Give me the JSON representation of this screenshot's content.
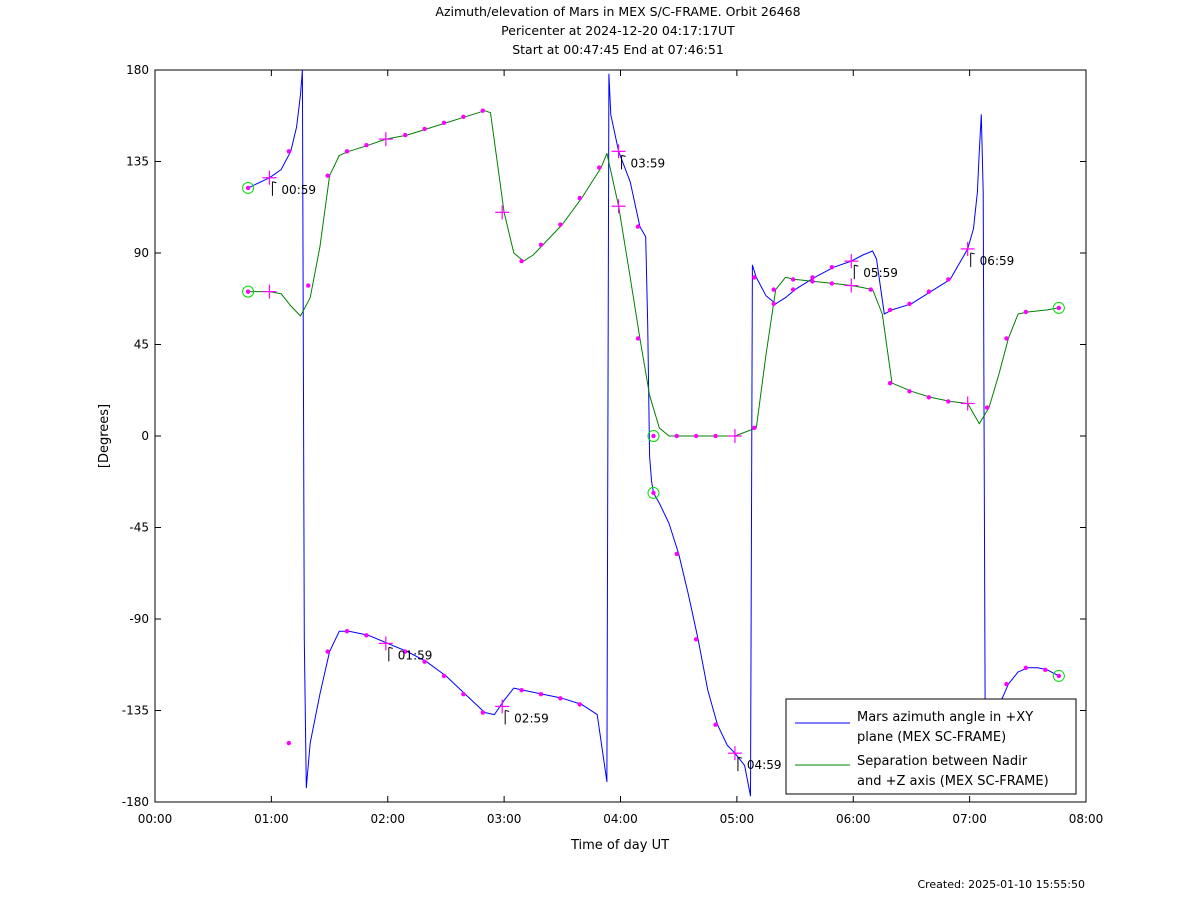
{
  "chart_data": {
    "type": "line",
    "title_lines": [
      "Azimuth/elevation of Mars in MEX S/C-FRAME.  Orbit 26468",
      "Pericenter at 2024-12-20 04:17:17UT",
      "Start at 00:47:45 End at 07:46:51"
    ],
    "xlabel": "Time of day UT",
    "ylabel": "[Degrees]",
    "xlim": [
      "00:00",
      "08:00"
    ],
    "ylim": [
      -180,
      180
    ],
    "x_ticks": [
      "00:00",
      "01:00",
      "02:00",
      "03:00",
      "04:00",
      "05:00",
      "06:00",
      "07:00",
      "08:00"
    ],
    "y_ticks": [
      180,
      135,
      90,
      45,
      0,
      -45,
      -90,
      -135,
      -180
    ],
    "grid": false,
    "legend_position": "bottom-right",
    "legend": [
      {
        "lines": [
          "Mars azimuth angle in +XY",
          "plane (MEX SC-FRAME)"
        ],
        "color": "#0000ff"
      },
      {
        "lines": [
          "Separation between Nadir",
          "and +Z axis (MEX SC-FRAME)"
        ],
        "color": "#008000"
      }
    ],
    "series": [
      {
        "id": "azimuth",
        "color": "#0000ff",
        "points": [
          [
            "00:48",
            122
          ],
          [
            "00:59",
            127
          ],
          [
            "01:05",
            131
          ],
          [
            "01:10",
            140
          ],
          [
            "01:13",
            152
          ],
          [
            "01:15",
            168
          ],
          [
            "01:16",
            180
          ],
          [
            "01:17",
            -100
          ],
          [
            "01:18",
            -173
          ],
          [
            "01:20",
            -151
          ],
          [
            "01:25",
            -127
          ],
          [
            "01:30",
            -106
          ],
          [
            "01:35",
            -96
          ],
          [
            "01:40",
            -96
          ],
          [
            "01:50",
            -98
          ],
          [
            "02:00",
            -102
          ],
          [
            "02:10",
            -106
          ],
          [
            "02:20",
            -111
          ],
          [
            "02:30",
            -118
          ],
          [
            "02:40",
            -127
          ],
          [
            "02:50",
            -136
          ],
          [
            "02:55",
            -137
          ],
          [
            "03:00",
            -130
          ],
          [
            "03:05",
            -124
          ],
          [
            "03:10",
            -125
          ],
          [
            "03:20",
            -127
          ],
          [
            "03:30",
            -129
          ],
          [
            "03:40",
            -132
          ],
          [
            "03:48",
            -137
          ],
          [
            "03:53",
            -170
          ],
          [
            "03:54",
            178
          ],
          [
            "03:55",
            158
          ],
          [
            "03:59",
            140
          ],
          [
            "04:05",
            125
          ],
          [
            "04:10",
            103
          ],
          [
            "04:13",
            98
          ],
          [
            "04:14",
            55
          ],
          [
            "04:15",
            -10
          ],
          [
            "04:16",
            -22
          ],
          [
            "04:17",
            -28
          ],
          [
            "04:20",
            -33
          ],
          [
            "04:25",
            -43
          ],
          [
            "04:30",
            -58
          ],
          [
            "04:35",
            -78
          ],
          [
            "04:40",
            -100
          ],
          [
            "04:45",
            -125
          ],
          [
            "04:50",
            -142
          ],
          [
            "04:55",
            -152
          ],
          [
            "04:59",
            -156
          ],
          [
            "05:04",
            -162
          ],
          [
            "05:07",
            -177
          ],
          [
            "05:08",
            84
          ],
          [
            "05:10",
            78
          ],
          [
            "05:15",
            69
          ],
          [
            "05:20",
            65
          ],
          [
            "05:25",
            68
          ],
          [
            "05:30",
            72
          ],
          [
            "05:40",
            78
          ],
          [
            "05:50",
            83
          ],
          [
            "05:59",
            86
          ],
          [
            "06:05",
            89
          ],
          [
            "06:10",
            91
          ],
          [
            "06:12",
            87
          ],
          [
            "06:16",
            60
          ],
          [
            "06:20",
            62
          ],
          [
            "06:30",
            65
          ],
          [
            "06:40",
            71
          ],
          [
            "06:50",
            77
          ],
          [
            "06:59",
            92
          ],
          [
            "07:02",
            102
          ],
          [
            "07:04",
            120
          ],
          [
            "07:05",
            140
          ],
          [
            "07:06",
            158
          ],
          [
            "07:07",
            120
          ],
          [
            "07:08",
            -130
          ],
          [
            "07:10",
            -138
          ],
          [
            "07:15",
            -133
          ],
          [
            "07:20",
            -122
          ],
          [
            "07:25",
            -116
          ],
          [
            "07:30",
            -114
          ],
          [
            "07:35",
            -114
          ],
          [
            "07:40",
            -115
          ],
          [
            "07:46",
            -118
          ]
        ]
      },
      {
        "id": "separation",
        "color": "#008000",
        "points": [
          [
            "00:48",
            71
          ],
          [
            "00:59",
            71
          ],
          [
            "01:05",
            70
          ],
          [
            "01:10",
            64
          ],
          [
            "01:15",
            59
          ],
          [
            "01:20",
            68
          ],
          [
            "01:25",
            93
          ],
          [
            "01:30",
            128
          ],
          [
            "01:35",
            138
          ],
          [
            "01:40",
            140
          ],
          [
            "01:50",
            143
          ],
          [
            "01:59",
            146
          ],
          [
            "02:10",
            148
          ],
          [
            "02:20",
            151
          ],
          [
            "02:30",
            154
          ],
          [
            "02:40",
            157
          ],
          [
            "02:50",
            160
          ],
          [
            "02:53",
            159
          ],
          [
            "03:00",
            110
          ],
          [
            "03:05",
            90
          ],
          [
            "03:10",
            86
          ],
          [
            "03:15",
            89
          ],
          [
            "03:20",
            94
          ],
          [
            "03:30",
            104
          ],
          [
            "03:40",
            117
          ],
          [
            "03:50",
            132
          ],
          [
            "03:53",
            139
          ],
          [
            "03:59",
            113
          ],
          [
            "04:05",
            78
          ],
          [
            "04:10",
            48
          ],
          [
            "04:15",
            20
          ],
          [
            "04:20",
            4
          ],
          [
            "04:25",
            0
          ],
          [
            "04:30",
            0
          ],
          [
            "04:40",
            0
          ],
          [
            "04:50",
            0
          ],
          [
            "04:59",
            0
          ],
          [
            "05:10",
            4
          ],
          [
            "05:15",
            40
          ],
          [
            "05:20",
            72
          ],
          [
            "05:25",
            78
          ],
          [
            "05:30",
            77
          ],
          [
            "05:40",
            76
          ],
          [
            "05:50",
            75
          ],
          [
            "05:59",
            74
          ],
          [
            "06:05",
            73
          ],
          [
            "06:10",
            72
          ],
          [
            "06:15",
            60
          ],
          [
            "06:20",
            26
          ],
          [
            "06:25",
            24
          ],
          [
            "06:30",
            22
          ],
          [
            "06:40",
            19
          ],
          [
            "06:50",
            17
          ],
          [
            "06:59",
            16
          ],
          [
            "07:05",
            6
          ],
          [
            "07:10",
            14
          ],
          [
            "07:15",
            30
          ],
          [
            "07:20",
            48
          ],
          [
            "07:25",
            60
          ],
          [
            "07:30",
            61
          ],
          [
            "07:40",
            62
          ],
          [
            "07:46",
            63
          ]
        ]
      }
    ],
    "annotations": [
      {
        "text": "00:59",
        "x": "00:59",
        "y": 127
      },
      {
        "text": "01:59",
        "x": "01:59",
        "y": -102
      },
      {
        "text": "02:59",
        "x": "02:59",
        "y": -133
      },
      {
        "text": "03:59",
        "x": "03:59",
        "y": 140
      },
      {
        "text": "04:59",
        "x": "04:59",
        "y": -156
      },
      {
        "text": "05:59",
        "x": "05:59",
        "y": 86
      },
      {
        "text": "06:59",
        "x": "06:59",
        "y": 92
      }
    ],
    "start_end_markers": [
      {
        "x": "00:48",
        "y": 122
      },
      {
        "x": "00:48",
        "y": 71
      },
      {
        "x": "04:17",
        "y": -28
      },
      {
        "x": "04:17",
        "y": 0
      },
      {
        "x": "07:46",
        "y": -118
      },
      {
        "x": "07:46",
        "y": 63
      }
    ],
    "hour_crosses": [
      {
        "x": "00:59",
        "y": 127
      },
      {
        "x": "00:59",
        "y": 71
      },
      {
        "x": "01:59",
        "y": -102
      },
      {
        "x": "01:59",
        "y": 146
      },
      {
        "x": "02:59",
        "y": -133
      },
      {
        "x": "02:59",
        "y": 110
      },
      {
        "x": "03:59",
        "y": 140
      },
      {
        "x": "03:59",
        "y": 113
      },
      {
        "x": "04:59",
        "y": -156
      },
      {
        "x": "04:59",
        "y": 0
      },
      {
        "x": "05:59",
        "y": 86
      },
      {
        "x": "05:59",
        "y": 74
      },
      {
        "x": "06:59",
        "y": 92
      },
      {
        "x": "06:59",
        "y": 16
      }
    ],
    "tick_dots": [
      {
        "x": "01:09",
        "y": 140
      },
      {
        "x": "01:19",
        "y": 74
      },
      {
        "x": "01:29",
        "y": 128
      },
      {
        "x": "01:39",
        "y": 140
      },
      {
        "x": "01:49",
        "y": 143
      },
      {
        "x": "02:09",
        "y": 148
      },
      {
        "x": "02:19",
        "y": 151
      },
      {
        "x": "02:29",
        "y": 154
      },
      {
        "x": "02:39",
        "y": 157
      },
      {
        "x": "02:49",
        "y": 160
      },
      {
        "x": "03:09",
        "y": 86
      },
      {
        "x": "03:19",
        "y": 94
      },
      {
        "x": "03:29",
        "y": 104
      },
      {
        "x": "03:39",
        "y": 117
      },
      {
        "x": "03:49",
        "y": 132
      },
      {
        "x": "04:09",
        "y": 103
      },
      {
        "x": "04:09",
        "y": 48
      },
      {
        "x": "04:29",
        "y": 0
      },
      {
        "x": "04:39",
        "y": 0
      },
      {
        "x": "04:49",
        "y": 0
      },
      {
        "x": "05:09",
        "y": 4
      },
      {
        "x": "05:19",
        "y": 72
      },
      {
        "x": "05:29",
        "y": 77
      },
      {
        "x": "05:39",
        "y": 76
      },
      {
        "x": "05:49",
        "y": 75
      },
      {
        "x": "06:09",
        "y": 72
      },
      {
        "x": "06:19",
        "y": 26
      },
      {
        "x": "06:29",
        "y": 22
      },
      {
        "x": "06:39",
        "y": 19
      },
      {
        "x": "06:49",
        "y": 17
      },
      {
        "x": "07:09",
        "y": 14
      },
      {
        "x": "07:19",
        "y": 48
      },
      {
        "x": "07:29",
        "y": 61
      },
      {
        "x": "01:09",
        "y": -151
      },
      {
        "x": "01:29",
        "y": -106
      },
      {
        "x": "01:39",
        "y": -96
      },
      {
        "x": "01:49",
        "y": -98
      },
      {
        "x": "02:09",
        "y": -106
      },
      {
        "x": "02:19",
        "y": -111
      },
      {
        "x": "02:29",
        "y": -118
      },
      {
        "x": "02:39",
        "y": -127
      },
      {
        "x": "02:49",
        "y": -136
      },
      {
        "x": "03:09",
        "y": -125
      },
      {
        "x": "03:19",
        "y": -127
      },
      {
        "x": "03:29",
        "y": -129
      },
      {
        "x": "03:39",
        "y": -132
      },
      {
        "x": "04:29",
        "y": -58
      },
      {
        "x": "04:39",
        "y": -100
      },
      {
        "x": "04:49",
        "y": -142
      },
      {
        "x": "05:09",
        "y": 78
      },
      {
        "x": "05:19",
        "y": 65
      },
      {
        "x": "05:29",
        "y": 72
      },
      {
        "x": "05:39",
        "y": 78
      },
      {
        "x": "05:49",
        "y": 83
      },
      {
        "x": "06:19",
        "y": 62
      },
      {
        "x": "06:29",
        "y": 65
      },
      {
        "x": "06:39",
        "y": 71
      },
      {
        "x": "06:49",
        "y": 77
      },
      {
        "x": "07:19",
        "y": -122
      },
      {
        "x": "07:29",
        "y": -114
      },
      {
        "x": "07:39",
        "y": -115
      }
    ]
  },
  "footer": {
    "created": "Created: 2025-01-10 15:55:50"
  }
}
